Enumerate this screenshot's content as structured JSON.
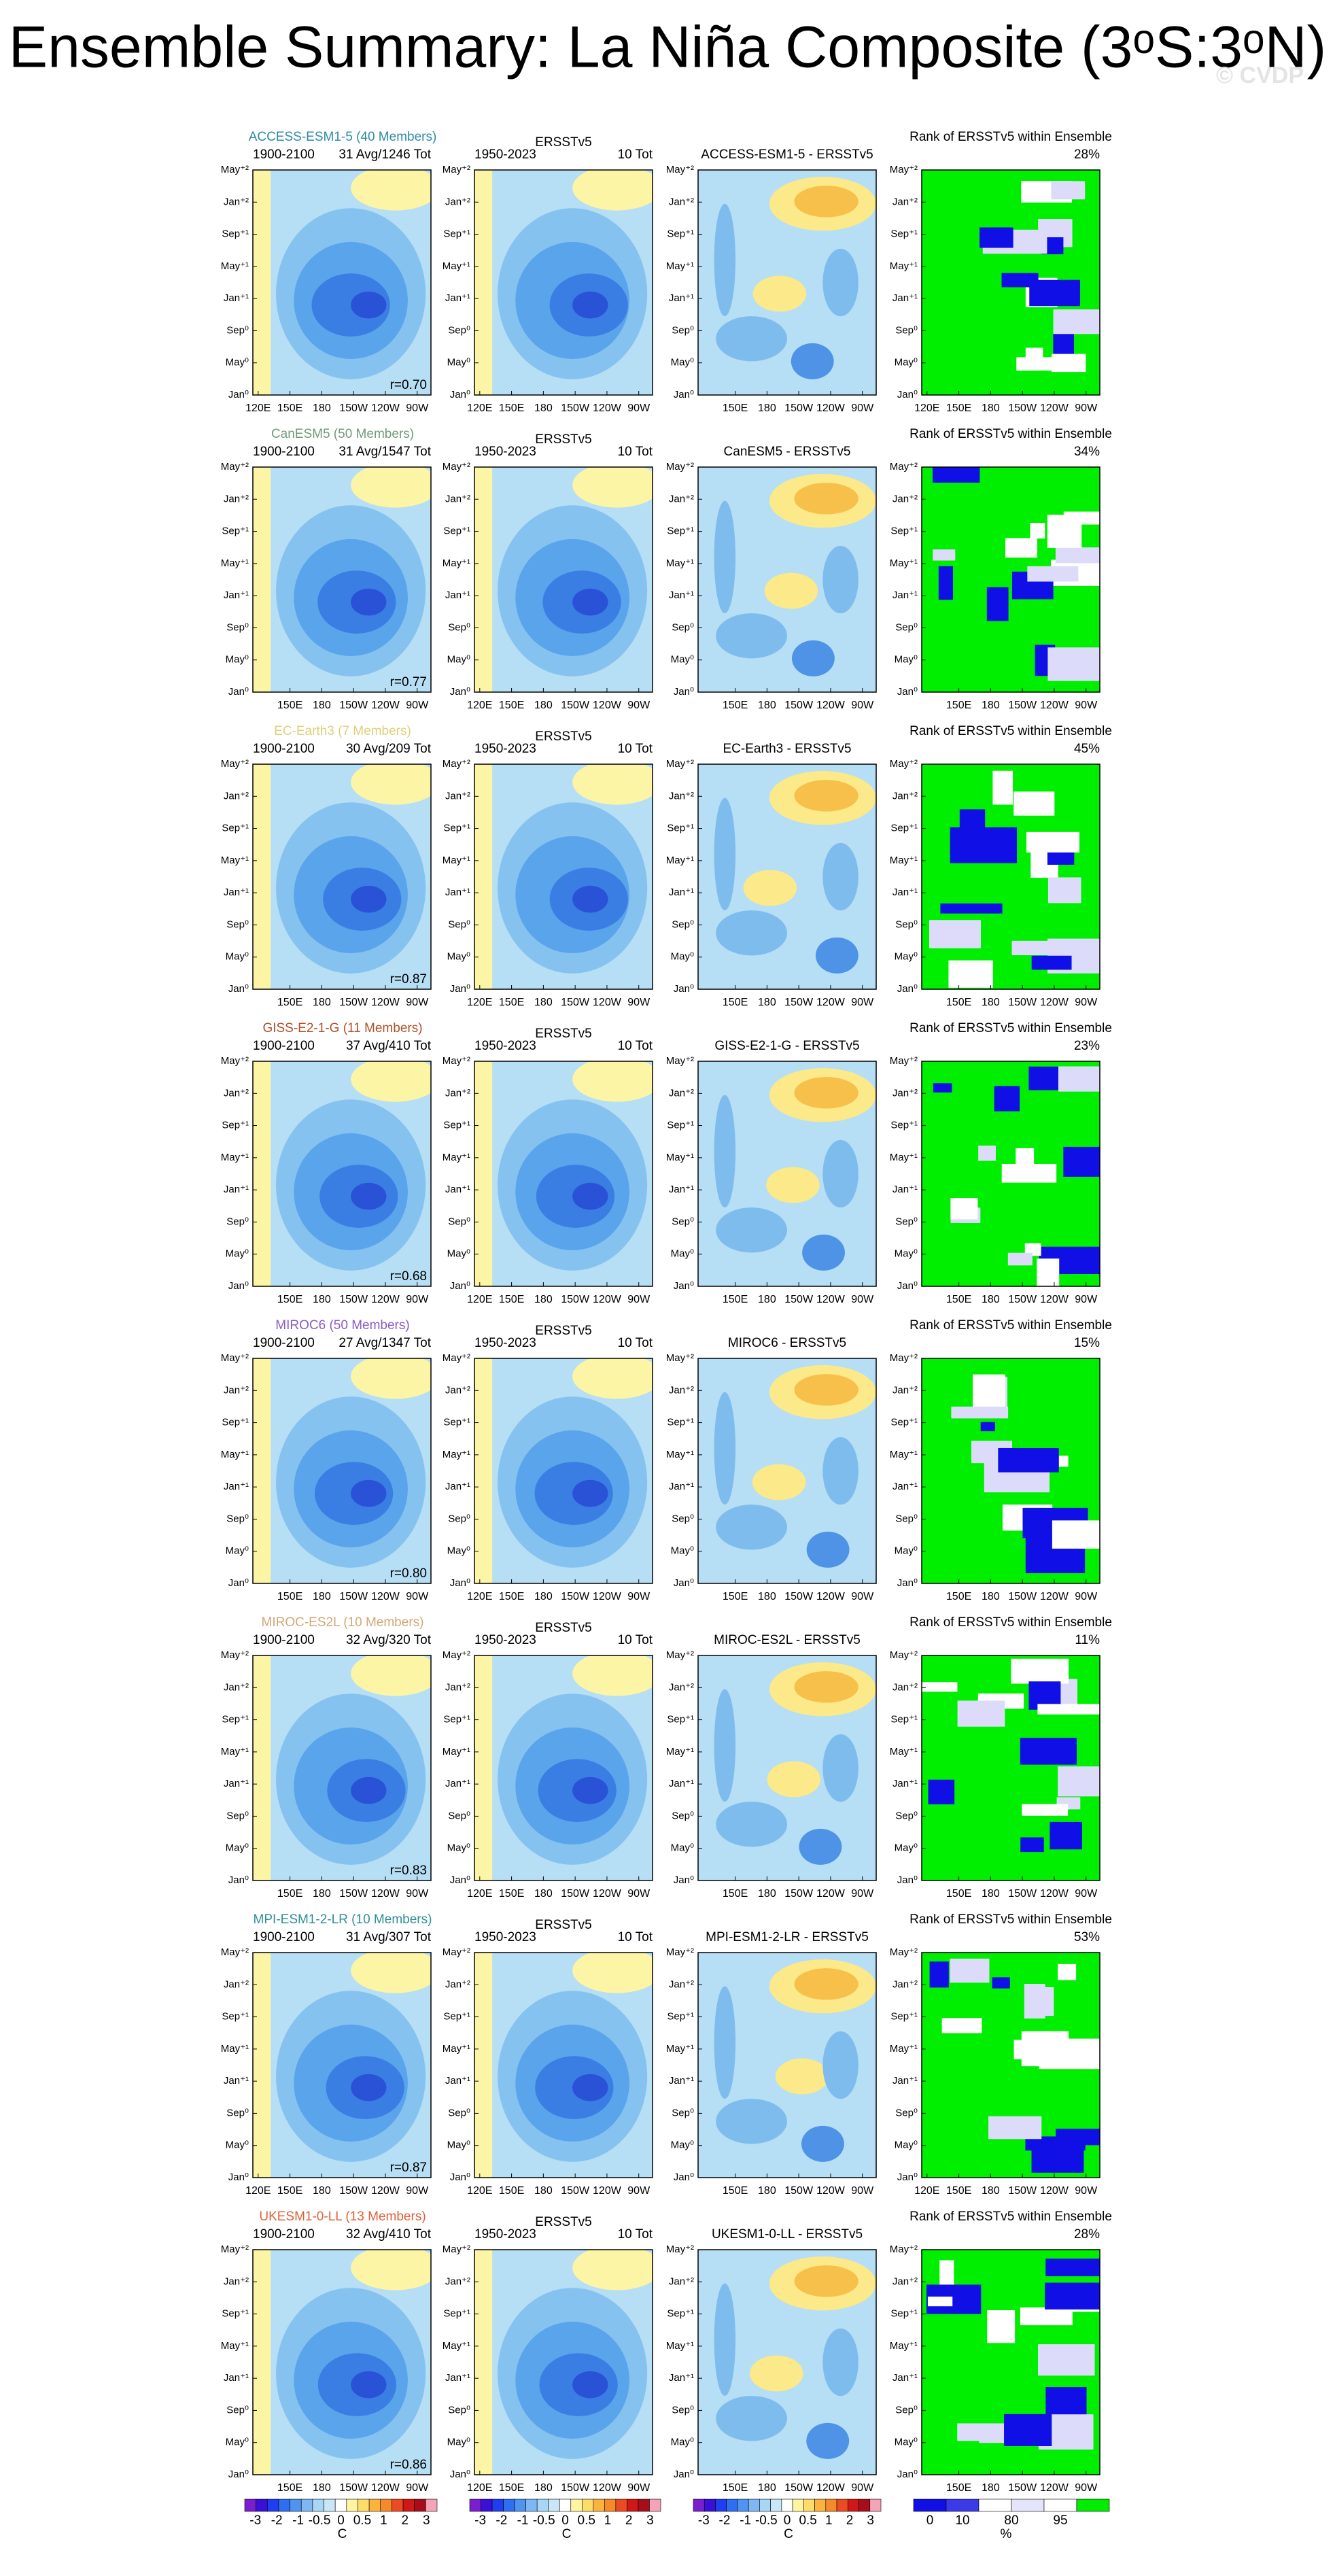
{
  "title": "Ensemble Summary: La Niña Composite (3ᵒS:3ᵒN)",
  "watermark": "© CVDP",
  "obs_name": "ERSSTv5",
  "obs_years": "1950-2023",
  "obs_count": "10 Tot",
  "rank_title": "Rank of ERSSTv5 within Ensemble",
  "y_labels": [
    "Jan⁰",
    "May⁰",
    "Sep⁰",
    "Jan⁺¹",
    "May⁺¹",
    "Sep⁺¹",
    "Jan⁺²",
    "May⁺²"
  ],
  "x_labels": [
    "120E",
    "150E",
    "180",
    "150W",
    "120W",
    "90W"
  ],
  "rows": [
    {
      "model": "ACCESS-ESM1-5 (40 Members)",
      "color": "#2e8ba6",
      "years": "1900-2100",
      "count": "31 Avg/1246 Tot",
      "r": "r=0.70",
      "diff": "ACCESS-ESM1-5 - ERSSTv5",
      "rank": "28%",
      "show_120e": [
        true,
        true,
        false,
        true
      ]
    },
    {
      "model": "CanESM5 (50 Members)",
      "color": "#6f9a7a",
      "years": "1900-2100",
      "count": "31 Avg/1547 Tot",
      "r": "r=0.77",
      "diff": "CanESM5 - ERSSTv5",
      "rank": "34%",
      "show_120e": [
        false,
        true,
        false,
        false
      ]
    },
    {
      "model": "EC-Earth3 (7 Members)",
      "color": "#e0cf7a",
      "years": "1900-2100",
      "count": "30 Avg/209 Tot",
      "r": "r=0.87",
      "diff": "EC-Earth3 - ERSSTv5",
      "rank": "45%",
      "show_120e": [
        false,
        true,
        false,
        false
      ]
    },
    {
      "model": "GISS-E2-1-G (11 Members)",
      "color": "#b0502a",
      "years": "1900-2100",
      "count": "37 Avg/410 Tot",
      "r": "r=0.68",
      "diff": "GISS-E2-1-G - ERSSTv5",
      "rank": "23%",
      "show_120e": [
        false,
        true,
        false,
        false
      ]
    },
    {
      "model": "MIROC6 (50 Members)",
      "color": "#8a5cc0",
      "years": "1900-2100",
      "count": "27 Avg/1347 Tot",
      "r": "r=0.80",
      "diff": "MIROC6 - ERSSTv5",
      "rank": "15%",
      "show_120e": [
        false,
        true,
        false,
        false
      ]
    },
    {
      "model": "MIROC-ES2L (10 Members)",
      "color": "#d2a878",
      "years": "1900-2100",
      "count": "32 Avg/320 Tot",
      "r": "r=0.83",
      "diff": "MIROC-ES2L - ERSSTv5",
      "rank": "11%",
      "show_120e": [
        false,
        true,
        false,
        false
      ]
    },
    {
      "model": "MPI-ESM1-2-LR (10 Members)",
      "color": "#2f8f96",
      "years": "1900-2100",
      "count": "31 Avg/307 Tot",
      "r": "r=0.87",
      "diff": "MPI-ESM1-2-LR - ERSSTv5",
      "rank": "53%",
      "show_120e": [
        true,
        true,
        false,
        true
      ]
    },
    {
      "model": "UKESM1-0-LL (13 Members)",
      "color": "#e0603a",
      "years": "1900-2100",
      "count": "32 Avg/410 Tot",
      "r": "r=0.86",
      "diff": "UKESM1-0-LL - ERSSTv5",
      "rank": "28%",
      "show_120e": [
        false,
        true,
        false,
        false
      ]
    }
  ],
  "colorbar": {
    "labels": [
      "-3",
      "-2",
      "-1",
      "-0.5",
      "0",
      "0.5",
      "1",
      "2",
      "3"
    ],
    "unit": "C"
  },
  "rank_colorbar": {
    "labels": [
      "0",
      "10",
      "80",
      "95"
    ],
    "unit": "%"
  }
}
